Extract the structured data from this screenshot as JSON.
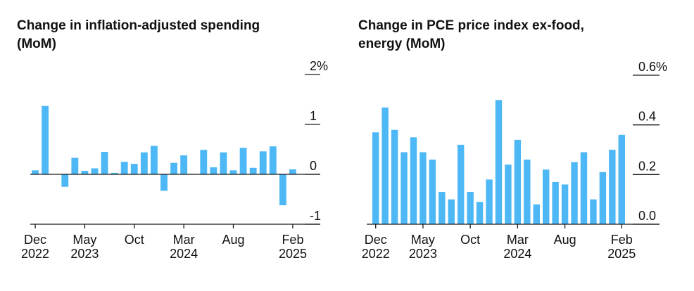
{
  "colors": {
    "bar": "#4db8f5",
    "axis": "#1a1a1a",
    "text": "#111111"
  },
  "chart_data": [
    {
      "type": "bar",
      "title": "Change in inflation-adjusted spending\n(MoM)",
      "ylim": [
        -1,
        2
      ],
      "yticks": [
        {
          "value": 2,
          "label": "2%"
        },
        {
          "value": 1,
          "label": "1"
        },
        {
          "value": 0,
          "label": "0"
        },
        {
          "value": -1,
          "label": "-1"
        }
      ],
      "xticks": [
        {
          "index": 0,
          "line1": "Dec",
          "line2": "2022"
        },
        {
          "index": 5,
          "line1": "May",
          "line2": "2023"
        },
        {
          "index": 10,
          "line1": "Oct",
          "line2": ""
        },
        {
          "index": 15,
          "line1": "Mar",
          "line2": "2024"
        },
        {
          "index": 20,
          "line1": "Aug",
          "line2": ""
        },
        {
          "index": 26,
          "line1": "Feb",
          "line2": "2025"
        }
      ],
      "grid": false,
      "series": [
        {
          "values": [
            0.08,
            1.37,
            0.0,
            -0.25,
            0.33,
            0.07,
            0.12,
            0.45,
            0.03,
            0.25,
            0.21,
            0.44,
            0.57,
            -0.33,
            0.23,
            0.38,
            0.01,
            0.49,
            0.14,
            0.44,
            0.08,
            0.53,
            0.13,
            0.46,
            0.56,
            -0.62,
            0.1
          ]
        }
      ]
    },
    {
      "type": "bar",
      "title": "Change in PCE price index ex-food,\nenergy (MoM)",
      "ylim": [
        0.0,
        0.6
      ],
      "yticks": [
        {
          "value": 0.6,
          "label": "0.6%"
        },
        {
          "value": 0.4,
          "label": "0.4"
        },
        {
          "value": 0.2,
          "label": "0.2"
        },
        {
          "value": 0.0,
          "label": "0.0"
        }
      ],
      "xticks": [
        {
          "index": 0,
          "line1": "Dec",
          "line2": "2022"
        },
        {
          "index": 5,
          "line1": "May",
          "line2": "2023"
        },
        {
          "index": 10,
          "line1": "Oct",
          "line2": ""
        },
        {
          "index": 15,
          "line1": "Mar",
          "line2": "2024"
        },
        {
          "index": 20,
          "line1": "Aug",
          "line2": ""
        },
        {
          "index": 26,
          "line1": "Feb",
          "line2": "2025"
        }
      ],
      "grid": false,
      "series": [
        {
          "values": [
            0.37,
            0.47,
            0.38,
            0.29,
            0.35,
            0.29,
            0.26,
            0.13,
            0.1,
            0.32,
            0.13,
            0.09,
            0.18,
            0.5,
            0.24,
            0.34,
            0.26,
            0.08,
            0.22,
            0.17,
            0.16,
            0.25,
            0.29,
            0.1,
            0.21,
            0.3,
            0.36
          ]
        }
      ]
    }
  ]
}
